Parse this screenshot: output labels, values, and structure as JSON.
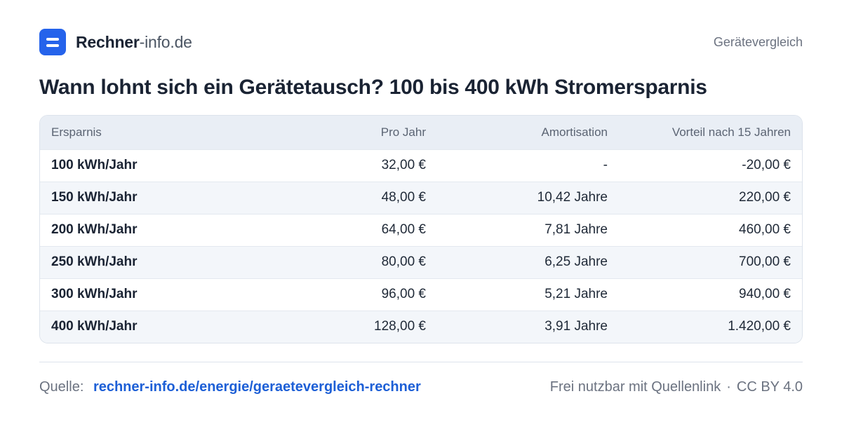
{
  "brand": {
    "name_strong": "Rechner",
    "name_light": "-info.de"
  },
  "header": {
    "tag": "Gerätevergleich"
  },
  "title": "Wann lohnt sich ein Gerätetausch? 100 bis 400 kWh Stromersparnis",
  "table": {
    "headers": [
      "Ersparnis",
      "Pro Jahr",
      "Amortisation",
      "Vorteil nach 15 Jahren"
    ],
    "rows": [
      [
        "100 kWh/Jahr",
        "32,00 €",
        "-",
        "-20,00 €"
      ],
      [
        "150 kWh/Jahr",
        "48,00 €",
        "10,42 Jahre",
        "220,00 €"
      ],
      [
        "200 kWh/Jahr",
        "64,00 €",
        "7,81 Jahre",
        "460,00 €"
      ],
      [
        "250 kWh/Jahr",
        "80,00 €",
        "6,25 Jahre",
        "700,00 €"
      ],
      [
        "300 kWh/Jahr",
        "96,00 €",
        "5,21 Jahre",
        "940,00 €"
      ],
      [
        "400 kWh/Jahr",
        "128,00 €",
        "3,91 Jahre",
        "1.420,00 €"
      ]
    ]
  },
  "footer": {
    "source_label": "Quelle:",
    "source_link": "rechner-info.de/energie/geraetevergleich-rechner",
    "license_text": "Frei nutzbar mit Quellenlink",
    "separator": "·",
    "license_id": "CC BY 4.0"
  },
  "colors": {
    "accent": "#2563eb",
    "link": "#1d5fd6",
    "header_bg": "#e9eef5",
    "stripe_bg": "#f3f6fa"
  }
}
